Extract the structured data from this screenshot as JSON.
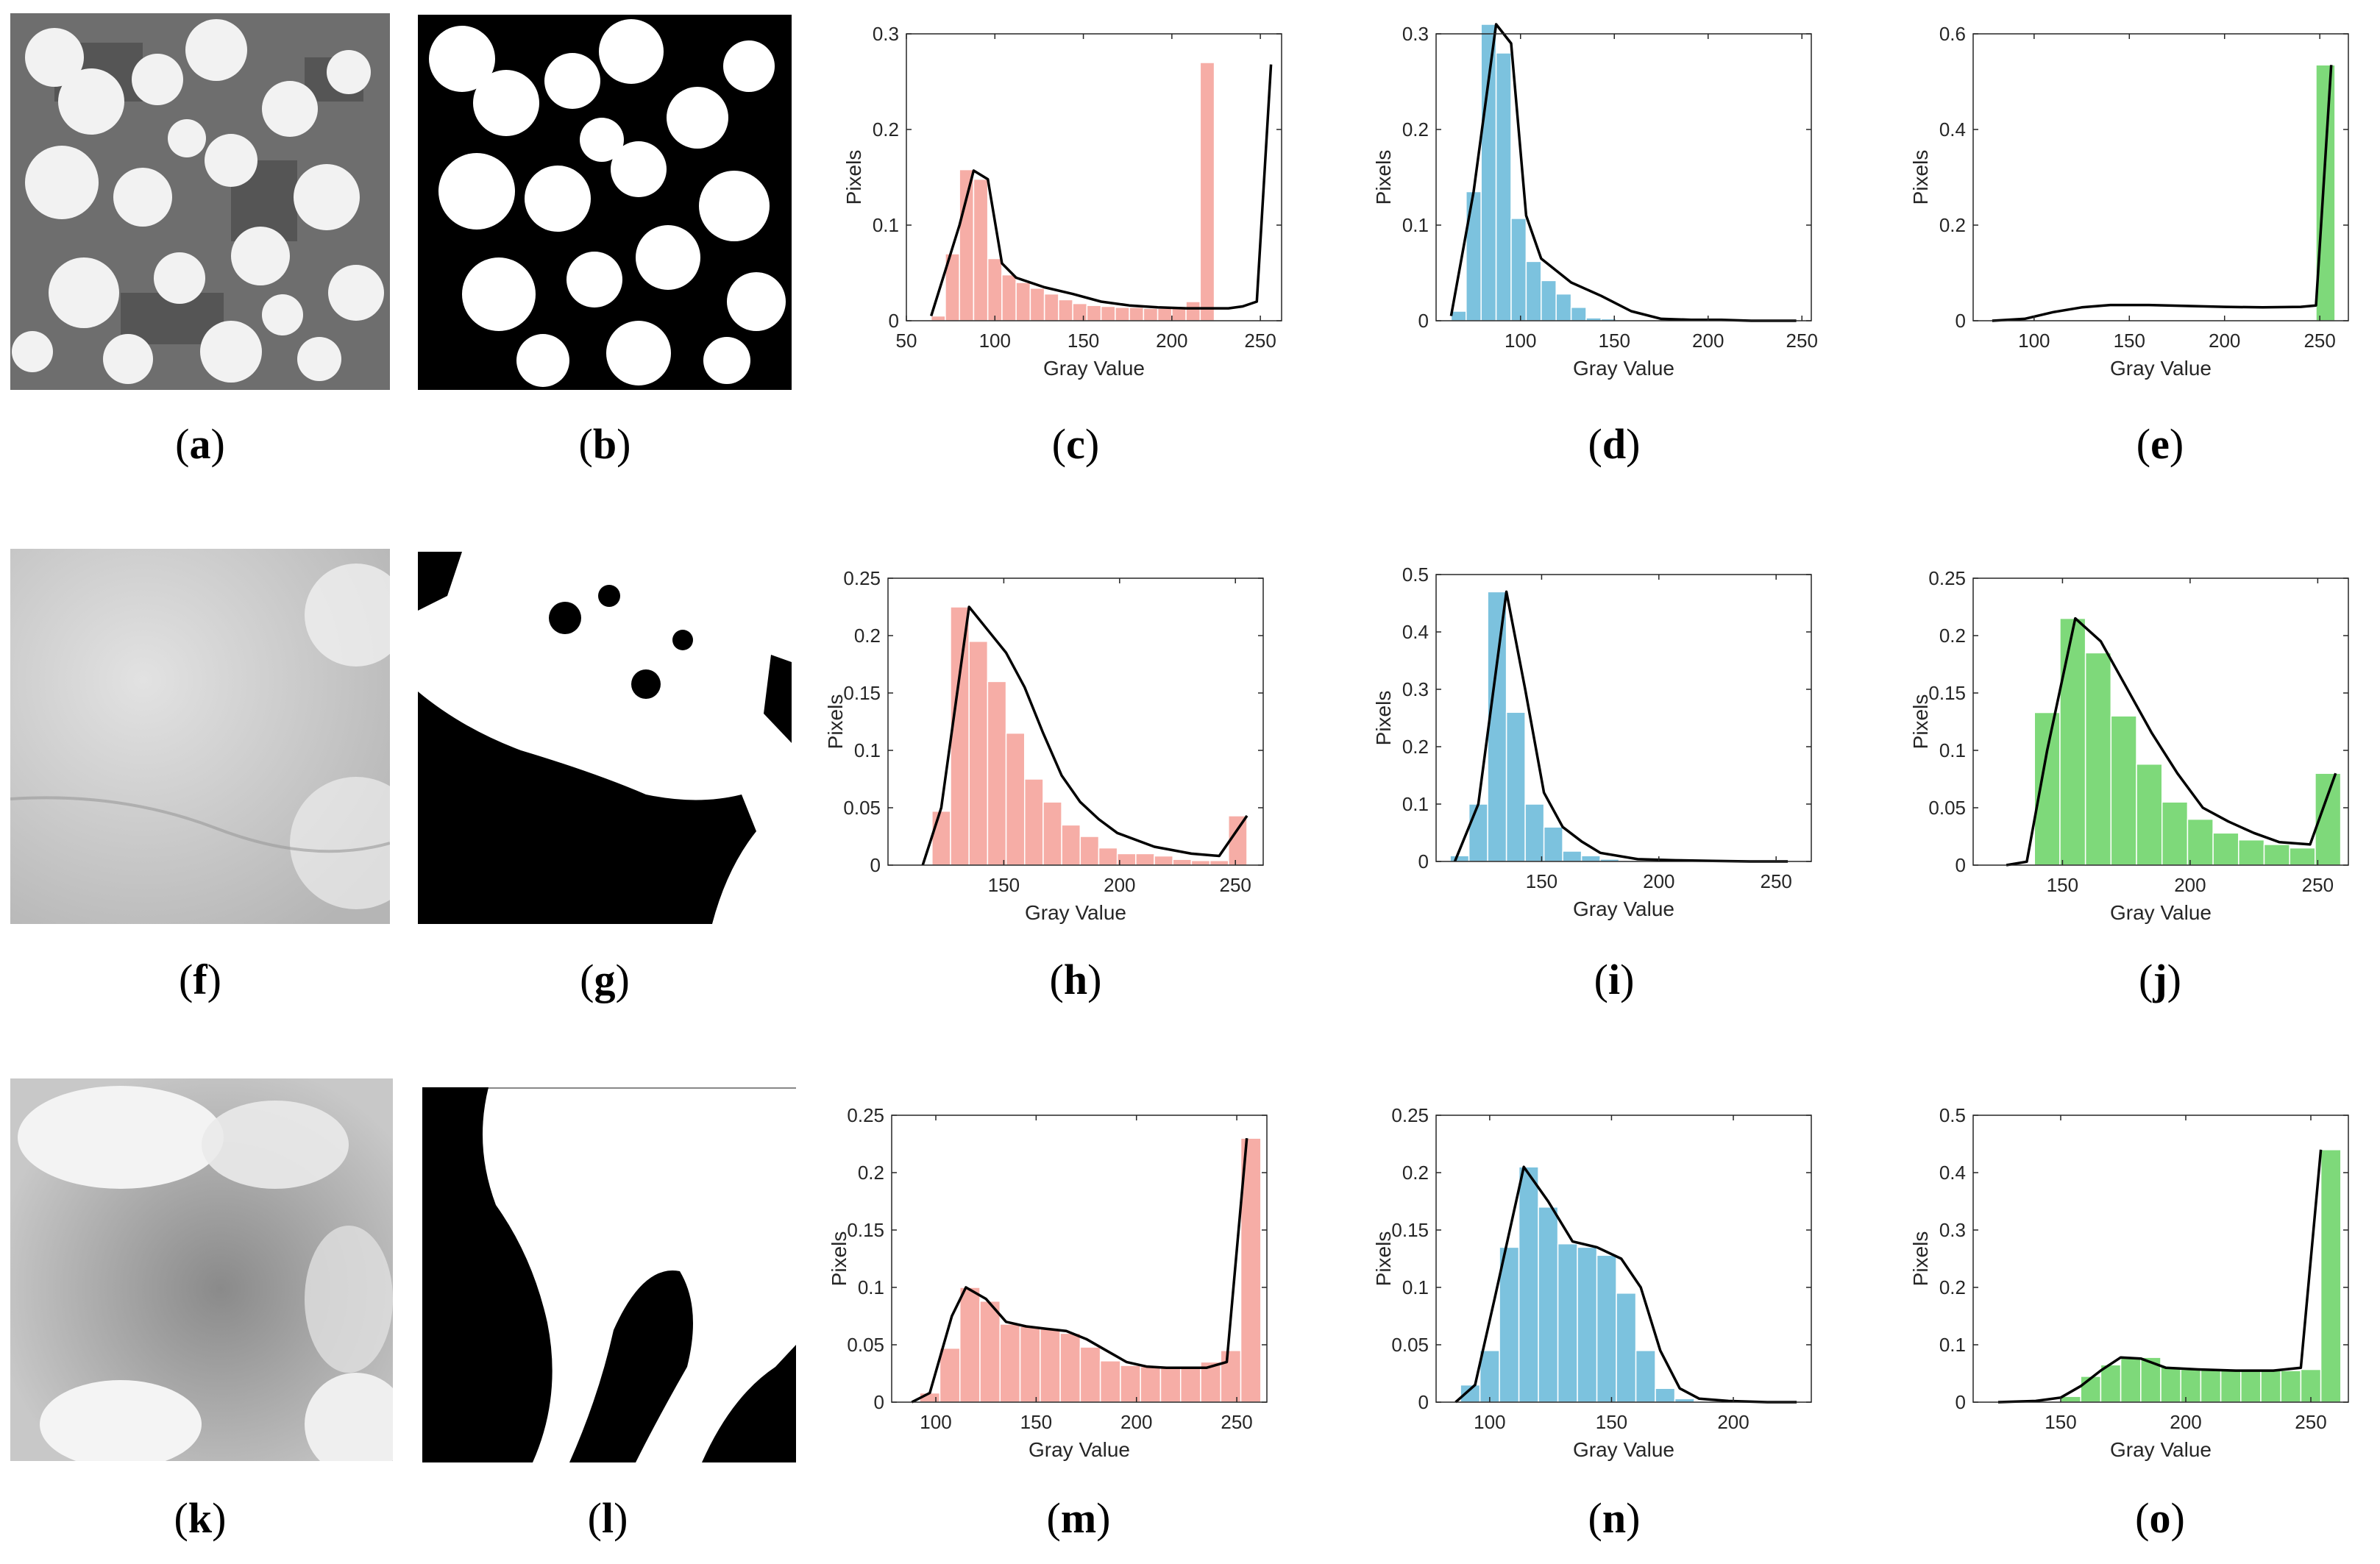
{
  "colors": {
    "pink": "#F6ADA6",
    "blue": "#7CC2DE",
    "green": "#7ED97A",
    "curve": "#000000",
    "axis": "#262626"
  },
  "images": [
    {
      "label": "(a)",
      "kind": "satellite-grayscale-scattered-clouds"
    },
    {
      "label": "(b)",
      "kind": "binary-cloud-mask"
    },
    {
      "label": "(f)",
      "kind": "satellite-grayscale-haze"
    },
    {
      "label": "(g)",
      "kind": "binary-cloud-mask"
    },
    {
      "label": "(k)",
      "kind": "satellite-grayscale-thick-cloud"
    },
    {
      "label": "(l)",
      "kind": "binary-cloud-mask"
    }
  ],
  "captions": [
    "(a)",
    "(b)",
    "(c)",
    "(d)",
    "(e)",
    "(f)",
    "(g)",
    "(h)",
    "(i)",
    "(j)",
    "(k)",
    "(l)",
    "(m)",
    "(n)",
    "(o)"
  ],
  "chart_data": [
    {
      "id": "c",
      "type": "bar",
      "color": "pink",
      "xlabel": "Gray Value",
      "ylabel": "Pixels",
      "xlim": [
        50,
        262
      ],
      "ylim": [
        0,
        0.3
      ],
      "xticks": [
        50,
        100,
        150,
        200,
        250
      ],
      "xtick_labels": [
        "50",
        "100",
        "150",
        "200",
        "250"
      ],
      "yticks": [
        0,
        0.1,
        0.2,
        0.3
      ],
      "ytick_labels": [
        "0",
        "0.1",
        "0.2",
        "0.3"
      ],
      "bin_start": 64,
      "bin_width": 8,
      "values": [
        0.005,
        0.07,
        0.158,
        0.148,
        0.065,
        0.048,
        0.04,
        0.034,
        0.028,
        0.022,
        0.018,
        0.016,
        0.015,
        0.014,
        0.014,
        0.013,
        0.013,
        0.015,
        0.02,
        0.27
      ],
      "curve_x": [
        64,
        80,
        88,
        96,
        104,
        112,
        128,
        144,
        160,
        176,
        192,
        208,
        224,
        232,
        240,
        248,
        256
      ],
      "curve_y": [
        0.005,
        0.1,
        0.157,
        0.148,
        0.06,
        0.045,
        0.035,
        0.028,
        0.02,
        0.016,
        0.014,
        0.013,
        0.013,
        0.013,
        0.015,
        0.02,
        0.268
      ]
    },
    {
      "id": "d",
      "type": "bar",
      "color": "blue",
      "xlabel": "Gray Value",
      "ylabel": "Pixels",
      "xlim": [
        55,
        255
      ],
      "ylim": [
        0,
        0.3
      ],
      "xticks": [
        100,
        150,
        200,
        250
      ],
      "xtick_labels": [
        "100",
        "150",
        "200",
        "250"
      ],
      "yticks": [
        0,
        0.1,
        0.2,
        0.3
      ],
      "ytick_labels": [
        "0",
        "0.1",
        "0.2",
        "0.3"
      ],
      "bin_start": 63,
      "bin_width": 8,
      "values": [
        0.01,
        0.135,
        0.31,
        0.28,
        0.107,
        0.062,
        0.042,
        0.028,
        0.014,
        0.003,
        0.002,
        0.001,
        0.001,
        0.001,
        0.001,
        0.0,
        0.0,
        0.0,
        0.0,
        0.0,
        0.0,
        0.0,
        0.0
      ],
      "curve_x": [
        63,
        75,
        87,
        95,
        103,
        111,
        127,
        143,
        159,
        175,
        191,
        207,
        223,
        239,
        247
      ],
      "curve_y": [
        0.005,
        0.135,
        0.31,
        0.29,
        0.11,
        0.065,
        0.04,
        0.026,
        0.01,
        0.002,
        0.001,
        0.001,
        0.0,
        0.0,
        0.0
      ]
    },
    {
      "id": "e",
      "type": "bar",
      "color": "green",
      "xlabel": "Gray Value",
      "ylabel": "Pixels",
      "xlim": [
        68,
        265
      ],
      "ylim": [
        0,
        0.6
      ],
      "xticks": [
        100,
        150,
        200,
        250
      ],
      "xtick_labels": [
        "100",
        "150",
        "200",
        "250"
      ],
      "yticks": [
        0,
        0.2,
        0.4,
        0.6
      ],
      "ytick_labels": [
        "0",
        "0.2",
        "0.4",
        "0.6"
      ],
      "bin_start": 248,
      "bin_width": 10,
      "values": [
        0.535
      ],
      "curve_x": [
        78,
        95,
        110,
        125,
        140,
        160,
        180,
        200,
        220,
        240,
        248,
        256
      ],
      "curve_y": [
        0.0,
        0.004,
        0.018,
        0.028,
        0.033,
        0.033,
        0.031,
        0.029,
        0.028,
        0.029,
        0.032,
        0.535
      ]
    },
    {
      "id": "h",
      "type": "bar",
      "color": "pink",
      "xlabel": "Gray Value",
      "ylabel": "Pixels",
      "xlim": [
        100,
        262
      ],
      "ylim": [
        0,
        0.25
      ],
      "xticks": [
        150,
        200,
        250
      ],
      "xtick_labels": [
        "150",
        "200",
        "250"
      ],
      "yticks": [
        0,
        0.05,
        0.1,
        0.15,
        0.2,
        0.25
      ],
      "ytick_labels": [
        "0",
        "0.05",
        "0.1",
        "0.15",
        "0.2",
        "0.25"
      ],
      "bin_start": 119,
      "bin_width": 8,
      "values": [
        0.047,
        0.225,
        0.195,
        0.16,
        0.115,
        0.075,
        0.055,
        0.035,
        0.025,
        0.015,
        0.01,
        0.01,
        0.008,
        0.005,
        0.004,
        0.004,
        0.043
      ],
      "curve_x": [
        115,
        123,
        135,
        143,
        151,
        159,
        167,
        175,
        183,
        191,
        199,
        215,
        231,
        243,
        255
      ],
      "curve_y": [
        0.0,
        0.05,
        0.225,
        0.205,
        0.185,
        0.155,
        0.115,
        0.078,
        0.055,
        0.04,
        0.028,
        0.016,
        0.01,
        0.008,
        0.043
      ]
    },
    {
      "id": "i",
      "type": "bar",
      "color": "blue",
      "xlabel": "Gray Value",
      "ylabel": "Pixels",
      "xlim": [
        105,
        265
      ],
      "ylim": [
        0,
        0.5
      ],
      "xticks": [
        150,
        200,
        250
      ],
      "xtick_labels": [
        "150",
        "200",
        "250"
      ],
      "yticks": [
        0,
        0.1,
        0.2,
        0.3,
        0.4,
        0.5
      ],
      "ytick_labels": [
        "0",
        "0.1",
        "0.2",
        "0.3",
        "0.4",
        "0.5"
      ],
      "bin_start": 111,
      "bin_width": 8,
      "values": [
        0.01,
        0.1,
        0.47,
        0.26,
        0.1,
        0.06,
        0.018,
        0.01,
        0.004,
        0.002,
        0.001,
        0.001,
        0.001,
        0.0,
        0.0,
        0.0,
        0.0,
        0.0
      ],
      "curve_x": [
        113,
        123,
        135,
        143,
        151,
        159,
        167,
        175,
        191,
        207,
        223,
        239,
        255
      ],
      "curve_y": [
        0.0,
        0.1,
        0.47,
        0.3,
        0.12,
        0.06,
        0.035,
        0.015,
        0.004,
        0.002,
        0.001,
        0.0,
        0.0
      ]
    },
    {
      "id": "j",
      "type": "bar",
      "color": "green",
      "xlabel": "Gray Value",
      "ylabel": "Pixels",
      "xlim": [
        115,
        262
      ],
      "ylim": [
        0,
        0.25
      ],
      "xticks": [
        150,
        200,
        250
      ],
      "xtick_labels": [
        "150",
        "200",
        "250"
      ],
      "yticks": [
        0,
        0.05,
        0.1,
        0.15,
        0.2,
        0.25
      ],
      "ytick_labels": [
        "0",
        "0.05",
        "0.1",
        "0.15",
        "0.2",
        "0.25"
      ],
      "bin_start": 139,
      "bin_width": 10,
      "values": [
        0.133,
        0.215,
        0.185,
        0.13,
        0.088,
        0.055,
        0.04,
        0.028,
        0.022,
        0.018,
        0.015,
        0.08
      ],
      "curve_x": [
        128,
        136,
        144,
        155,
        165,
        175,
        185,
        195,
        205,
        215,
        225,
        235,
        247,
        257
      ],
      "curve_y": [
        0.0,
        0.003,
        0.1,
        0.215,
        0.195,
        0.155,
        0.115,
        0.08,
        0.05,
        0.038,
        0.028,
        0.02,
        0.018,
        0.08
      ]
    },
    {
      "id": "m",
      "type": "bar",
      "color": "pink",
      "xlabel": "Gray Value",
      "ylabel": "Pixels",
      "xlim": [
        78,
        265
      ],
      "ylim": [
        0,
        0.25
      ],
      "xticks": [
        100,
        150,
        200,
        250
      ],
      "xtick_labels": [
        "100",
        "150",
        "200",
        "250"
      ],
      "yticks": [
        0,
        0.05,
        0.1,
        0.15,
        0.2,
        0.25
      ],
      "ytick_labels": [
        "0",
        "0.05",
        "0.1",
        "0.15",
        "0.2",
        "0.25"
      ],
      "bin_start": 92,
      "bin_width": 10,
      "values": [
        0.008,
        0.047,
        0.1,
        0.088,
        0.068,
        0.066,
        0.064,
        0.06,
        0.048,
        0.036,
        0.032,
        0.031,
        0.03,
        0.03,
        0.035,
        0.045,
        0.23
      ],
      "curve_x": [
        88,
        97,
        108,
        115,
        125,
        135,
        145,
        155,
        165,
        175,
        185,
        195,
        205,
        215,
        225,
        235,
        245,
        255
      ],
      "curve_y": [
        0.0,
        0.008,
        0.075,
        0.1,
        0.09,
        0.07,
        0.066,
        0.064,
        0.062,
        0.055,
        0.045,
        0.035,
        0.031,
        0.03,
        0.03,
        0.03,
        0.035,
        0.23
      ]
    },
    {
      "id": "n",
      "type": "bar",
      "color": "blue",
      "xlabel": "Gray Value",
      "ylabel": "Pixels",
      "xlim": [
        78,
        232
      ],
      "ylim": [
        0,
        0.25
      ],
      "xticks": [
        100,
        150,
        200
      ],
      "xtick_labels": [
        "100",
        "150",
        "200"
      ],
      "yticks": [
        0,
        0.05,
        0.1,
        0.15,
        0.2,
        0.25
      ],
      "ytick_labels": [
        "0",
        "0.05",
        "0.1",
        "0.15",
        "0.2",
        "0.25"
      ],
      "bin_start": 88,
      "bin_width": 8,
      "values": [
        0.015,
        0.045,
        0.135,
        0.205,
        0.17,
        0.138,
        0.135,
        0.128,
        0.095,
        0.045,
        0.012,
        0.003,
        0.001,
        0.0,
        0.0,
        0.0,
        0.0,
        0.0
      ],
      "curve_x": [
        86,
        94,
        102,
        114,
        124,
        134,
        144,
        154,
        162,
        170,
        178,
        186,
        198,
        214,
        226
      ],
      "curve_y": [
        0.0,
        0.015,
        0.09,
        0.205,
        0.175,
        0.14,
        0.135,
        0.125,
        0.1,
        0.045,
        0.012,
        0.003,
        0.001,
        0.0,
        0.0
      ]
    },
    {
      "id": "o",
      "type": "bar",
      "color": "green",
      "xlabel": "Gray Value",
      "ylabel": "Pixels",
      "xlim": [
        115,
        265
      ],
      "ylim": [
        0,
        0.5
      ],
      "xticks": [
        150,
        200,
        250
      ],
      "xtick_labels": [
        "150",
        "200",
        "250"
      ],
      "yticks": [
        0,
        0.1,
        0.2,
        0.3,
        0.4,
        0.5
      ],
      "ytick_labels": [
        "0",
        "0.1",
        "0.2",
        "0.3",
        "0.4",
        "0.5"
      ],
      "bin_start": 150,
      "bin_width": 8,
      "values": [
        0.01,
        0.045,
        0.065,
        0.078,
        0.078,
        0.062,
        0.057,
        0.057,
        0.056,
        0.055,
        0.055,
        0.055,
        0.057,
        0.44
      ],
      "curve_x": [
        125,
        140,
        150,
        158,
        166,
        174,
        182,
        192,
        205,
        220,
        235,
        246,
        254
      ],
      "curve_y": [
        0.0,
        0.002,
        0.008,
        0.028,
        0.055,
        0.078,
        0.076,
        0.06,
        0.057,
        0.055,
        0.055,
        0.06,
        0.44
      ]
    }
  ]
}
